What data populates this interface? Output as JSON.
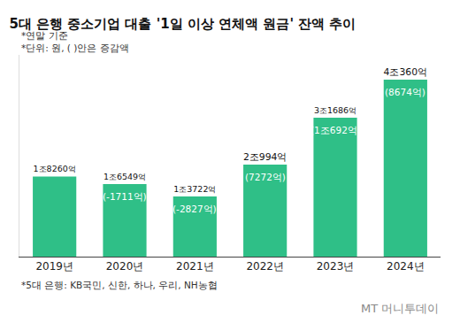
{
  "chart_data": {
    "type": "bar",
    "title": "5대 은행 중소기업 대출 '1일 이상 연체액 원금' 잔액 추이",
    "notes": [
      "*연말 기준",
      "*단위: 원, ( )안은 증감액"
    ],
    "footnote": "*5대 은행: KB국민, 신한, 하나, 우리, NH농협",
    "source": "MT 머니투데이",
    "categories": [
      "2019년",
      "2020년",
      "2021년",
      "2022년",
      "2023년",
      "2024년"
    ],
    "values": [
      18260,
      16549,
      13722,
      20994,
      31686,
      40360
    ],
    "value_labels": [
      "1조8260억",
      "1조6549억",
      "1조3722억",
      "2조994억",
      "3조1686억",
      "4조360억"
    ],
    "changes": [
      null,
      -1711,
      -2827,
      7272,
      10692,
      8674
    ],
    "change_labels": [
      null,
      "(-1711억)",
      "(-2827억)",
      "(7272억)",
      "(1조692억)",
      "(8674억)"
    ],
    "color": "#2fbf87",
    "ylim": [
      0,
      46000
    ],
    "data_labels": true,
    "tick_labels": "x",
    "grid": false
  }
}
